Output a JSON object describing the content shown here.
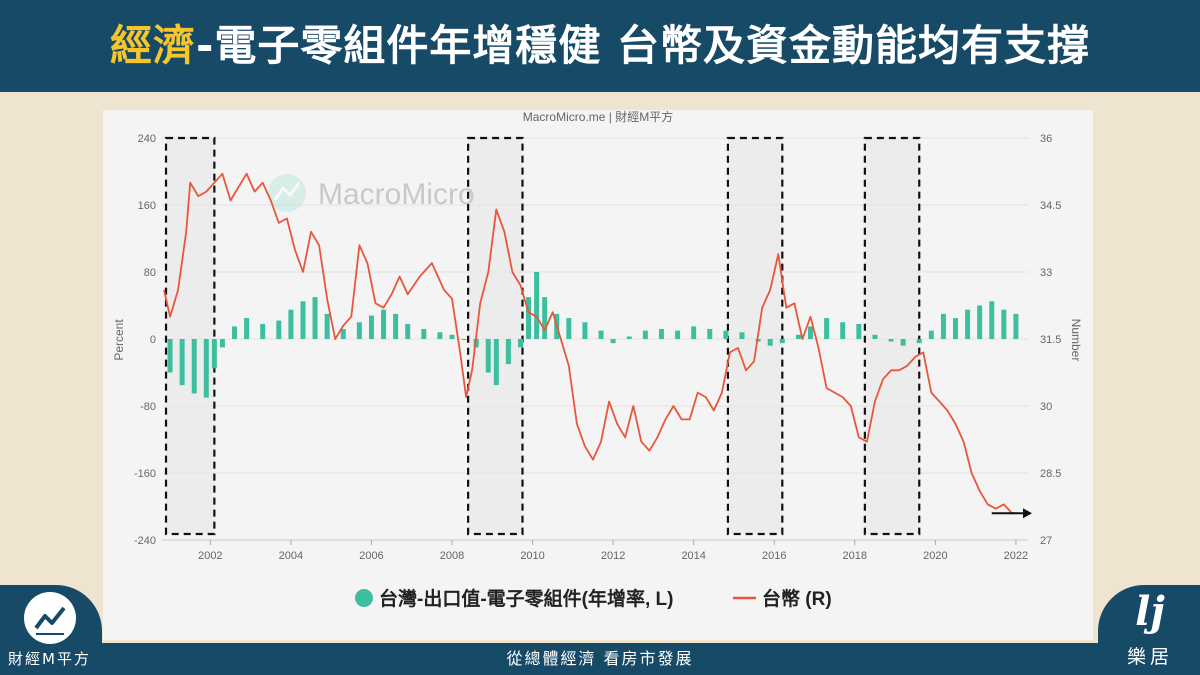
{
  "header": {
    "title_highlight": "經濟",
    "title_rest": "-電子零組件年增穩健 台幣及資金動能均有支撐"
  },
  "footer": {
    "left_brand": "財經M平方",
    "center_slogan": "從總體經濟 看房市發展",
    "right_brand": "樂居",
    "right_mark": "lj"
  },
  "colors": {
    "header_bg": "#174a66",
    "highlight": "#f5c52b",
    "bar": "#3dbf9f",
    "line": "#e8563c",
    "page_bg": "#efe4d0"
  },
  "icons": [
    "chart-line-logo-icon",
    "macromicro-watermark-icon",
    "arrow-right-icon"
  ],
  "chart_data": {
    "type": "bar+line",
    "source": "MacroMicro.me | 財經M平方",
    "watermark": "MacroMicro",
    "ylabel_left": "Percent",
    "ylabel_right": "Number",
    "ylim_left": [
      -240,
      240
    ],
    "ylim_right": [
      27,
      36
    ],
    "yticks_left": [
      "240",
      "160",
      "80",
      "0",
      "-80",
      "-160",
      "-240"
    ],
    "yticks_right": [
      "36",
      "34.5",
      "33",
      "31.5",
      "30",
      "28.5",
      "27"
    ],
    "x_range": [
      2000.8,
      2022.3
    ],
    "xticks": [
      "2002",
      "2004",
      "2006",
      "2008",
      "2010",
      "2012",
      "2014",
      "2016",
      "2018",
      "2020",
      "2022"
    ],
    "legend": [
      "台灣-出口值-電子零組件(年增率, L)",
      "台幣 (R)"
    ],
    "series": [
      {
        "name": "台灣-出口值-電子零組件(年增率, L)",
        "kind": "bar",
        "points": [
          [
            2001.0,
            -40
          ],
          [
            2001.3,
            -55
          ],
          [
            2001.6,
            -65
          ],
          [
            2001.9,
            -70
          ],
          [
            2002.1,
            -35
          ],
          [
            2002.3,
            -10
          ],
          [
            2002.6,
            15
          ],
          [
            2002.9,
            25
          ],
          [
            2003.3,
            18
          ],
          [
            2003.7,
            22
          ],
          [
            2004.0,
            35
          ],
          [
            2004.3,
            45
          ],
          [
            2004.6,
            50
          ],
          [
            2004.9,
            30
          ],
          [
            2005.3,
            12
          ],
          [
            2005.7,
            20
          ],
          [
            2006.0,
            28
          ],
          [
            2006.3,
            35
          ],
          [
            2006.6,
            30
          ],
          [
            2006.9,
            18
          ],
          [
            2007.3,
            12
          ],
          [
            2007.7,
            8
          ],
          [
            2008.0,
            5
          ],
          [
            2008.3,
            0
          ],
          [
            2008.6,
            -10
          ],
          [
            2008.9,
            -40
          ],
          [
            2009.1,
            -55
          ],
          [
            2009.4,
            -30
          ],
          [
            2009.7,
            -10
          ],
          [
            2009.9,
            50
          ],
          [
            2010.1,
            80
          ],
          [
            2010.3,
            50
          ],
          [
            2010.6,
            30
          ],
          [
            2010.9,
            25
          ],
          [
            2011.3,
            20
          ],
          [
            2011.7,
            10
          ],
          [
            2012.0,
            -5
          ],
          [
            2012.4,
            3
          ],
          [
            2012.8,
            10
          ],
          [
            2013.2,
            12
          ],
          [
            2013.6,
            10
          ],
          [
            2014.0,
            15
          ],
          [
            2014.4,
            12
          ],
          [
            2014.8,
            10
          ],
          [
            2015.2,
            8
          ],
          [
            2015.6,
            -3
          ],
          [
            2015.9,
            -8
          ],
          [
            2016.2,
            -5
          ],
          [
            2016.6,
            5
          ],
          [
            2016.9,
            15
          ],
          [
            2017.3,
            25
          ],
          [
            2017.7,
            20
          ],
          [
            2018.1,
            18
          ],
          [
            2018.5,
            5
          ],
          [
            2018.9,
            -3
          ],
          [
            2019.2,
            -8
          ],
          [
            2019.6,
            -5
          ],
          [
            2019.9,
            10
          ],
          [
            2020.2,
            30
          ],
          [
            2020.5,
            25
          ],
          [
            2020.8,
            35
          ],
          [
            2021.1,
            40
          ],
          [
            2021.4,
            45
          ],
          [
            2021.7,
            35
          ],
          [
            2022.0,
            30
          ]
        ]
      },
      {
        "name": "台幣 (R)",
        "kind": "line",
        "points": [
          [
            2000.85,
            32.6
          ],
          [
            2001.0,
            32.0
          ],
          [
            2001.2,
            32.6
          ],
          [
            2001.4,
            33.9
          ],
          [
            2001.5,
            35.0
          ],
          [
            2001.7,
            34.7
          ],
          [
            2001.9,
            34.8
          ],
          [
            2002.1,
            35.0
          ],
          [
            2002.3,
            35.2
          ],
          [
            2002.5,
            34.6
          ],
          [
            2002.7,
            34.9
          ],
          [
            2002.9,
            35.2
          ],
          [
            2003.1,
            34.8
          ],
          [
            2003.3,
            35.0
          ],
          [
            2003.5,
            34.6
          ],
          [
            2003.7,
            34.1
          ],
          [
            2003.9,
            34.2
          ],
          [
            2004.1,
            33.5
          ],
          [
            2004.3,
            33.0
          ],
          [
            2004.5,
            33.9
          ],
          [
            2004.7,
            33.6
          ],
          [
            2004.9,
            32.4
          ],
          [
            2005.1,
            31.5
          ],
          [
            2005.3,
            31.8
          ],
          [
            2005.5,
            32.0
          ],
          [
            2005.7,
            33.6
          ],
          [
            2005.9,
            33.2
          ],
          [
            2006.1,
            32.3
          ],
          [
            2006.3,
            32.2
          ],
          [
            2006.5,
            32.5
          ],
          [
            2006.7,
            32.9
          ],
          [
            2006.9,
            32.5
          ],
          [
            2007.2,
            32.9
          ],
          [
            2007.5,
            33.2
          ],
          [
            2007.8,
            32.6
          ],
          [
            2008.0,
            32.4
          ],
          [
            2008.2,
            31.2
          ],
          [
            2008.35,
            30.2
          ],
          [
            2008.5,
            30.8
          ],
          [
            2008.7,
            32.3
          ],
          [
            2008.9,
            33.0
          ],
          [
            2009.1,
            34.4
          ],
          [
            2009.3,
            33.9
          ],
          [
            2009.5,
            33.0
          ],
          [
            2009.7,
            32.7
          ],
          [
            2009.9,
            32.1
          ],
          [
            2010.1,
            32.0
          ],
          [
            2010.3,
            31.7
          ],
          [
            2010.5,
            32.1
          ],
          [
            2010.7,
            31.5
          ],
          [
            2010.9,
            30.9
          ],
          [
            2011.1,
            29.6
          ],
          [
            2011.3,
            29.1
          ],
          [
            2011.5,
            28.8
          ],
          [
            2011.7,
            29.2
          ],
          [
            2011.9,
            30.1
          ],
          [
            2012.1,
            29.6
          ],
          [
            2012.3,
            29.3
          ],
          [
            2012.5,
            30.0
          ],
          [
            2012.7,
            29.2
          ],
          [
            2012.9,
            29.0
          ],
          [
            2013.1,
            29.3
          ],
          [
            2013.3,
            29.7
          ],
          [
            2013.5,
            30.0
          ],
          [
            2013.7,
            29.7
          ],
          [
            2013.9,
            29.7
          ],
          [
            2014.1,
            30.3
          ],
          [
            2014.3,
            30.2
          ],
          [
            2014.5,
            29.9
          ],
          [
            2014.7,
            30.3
          ],
          [
            2014.9,
            31.2
          ],
          [
            2015.1,
            31.3
          ],
          [
            2015.3,
            30.8
          ],
          [
            2015.5,
            31.0
          ],
          [
            2015.7,
            32.2
          ],
          [
            2015.9,
            32.6
          ],
          [
            2016.1,
            33.4
          ],
          [
            2016.3,
            32.2
          ],
          [
            2016.5,
            32.3
          ],
          [
            2016.7,
            31.5
          ],
          [
            2016.9,
            32.0
          ],
          [
            2017.1,
            31.3
          ],
          [
            2017.3,
            30.4
          ],
          [
            2017.5,
            30.3
          ],
          [
            2017.7,
            30.2
          ],
          [
            2017.9,
            30.0
          ],
          [
            2018.1,
            29.3
          ],
          [
            2018.3,
            29.2
          ],
          [
            2018.5,
            30.1
          ],
          [
            2018.7,
            30.6
          ],
          [
            2018.9,
            30.8
          ],
          [
            2019.1,
            30.8
          ],
          [
            2019.3,
            30.9
          ],
          [
            2019.5,
            31.1
          ],
          [
            2019.7,
            31.2
          ],
          [
            2019.9,
            30.3
          ],
          [
            2020.1,
            30.1
          ],
          [
            2020.3,
            29.9
          ],
          [
            2020.5,
            29.6
          ],
          [
            2020.7,
            29.2
          ],
          [
            2020.9,
            28.5
          ],
          [
            2021.1,
            28.1
          ],
          [
            2021.3,
            27.8
          ],
          [
            2021.5,
            27.7
          ],
          [
            2021.7,
            27.8
          ],
          [
            2021.9,
            27.6
          ],
          [
            2022.0,
            27.6
          ]
        ]
      }
    ],
    "highlight_boxes": [
      [
        2000.9,
        2002.1
      ],
      [
        2008.4,
        2009.75
      ],
      [
        2014.85,
        2016.2
      ],
      [
        2018.25,
        2019.6
      ]
    ],
    "trend_arrow": {
      "x_start": 2021.4,
      "x_end": 2022.4,
      "y": 27.6
    },
    "grid": true,
    "legend_placement": "bottom"
  }
}
